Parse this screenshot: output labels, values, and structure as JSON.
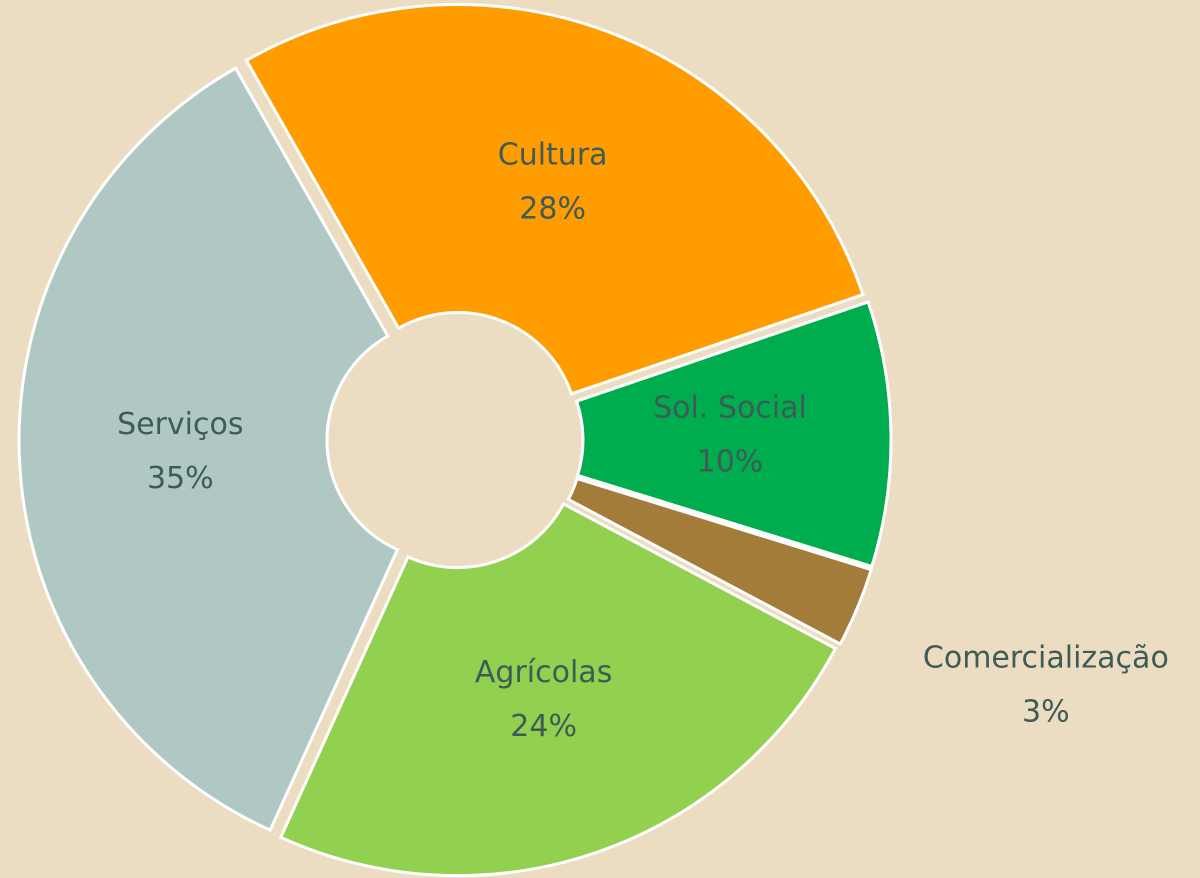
{
  "chart_data": {
    "type": "donut",
    "categories": [
      "Cultura",
      "Sol. Social",
      "Comercialização",
      "Agrícolas",
      "Serviços"
    ],
    "values": [
      28,
      10,
      3,
      24,
      35
    ],
    "value_labels": [
      "28%",
      "10%",
      "3%",
      "24%",
      "35%"
    ],
    "colors": [
      "#ff9c00",
      "#00ad4e",
      "#a47c3a",
      "#92d050",
      "#b0c8c4"
    ]
  }
}
